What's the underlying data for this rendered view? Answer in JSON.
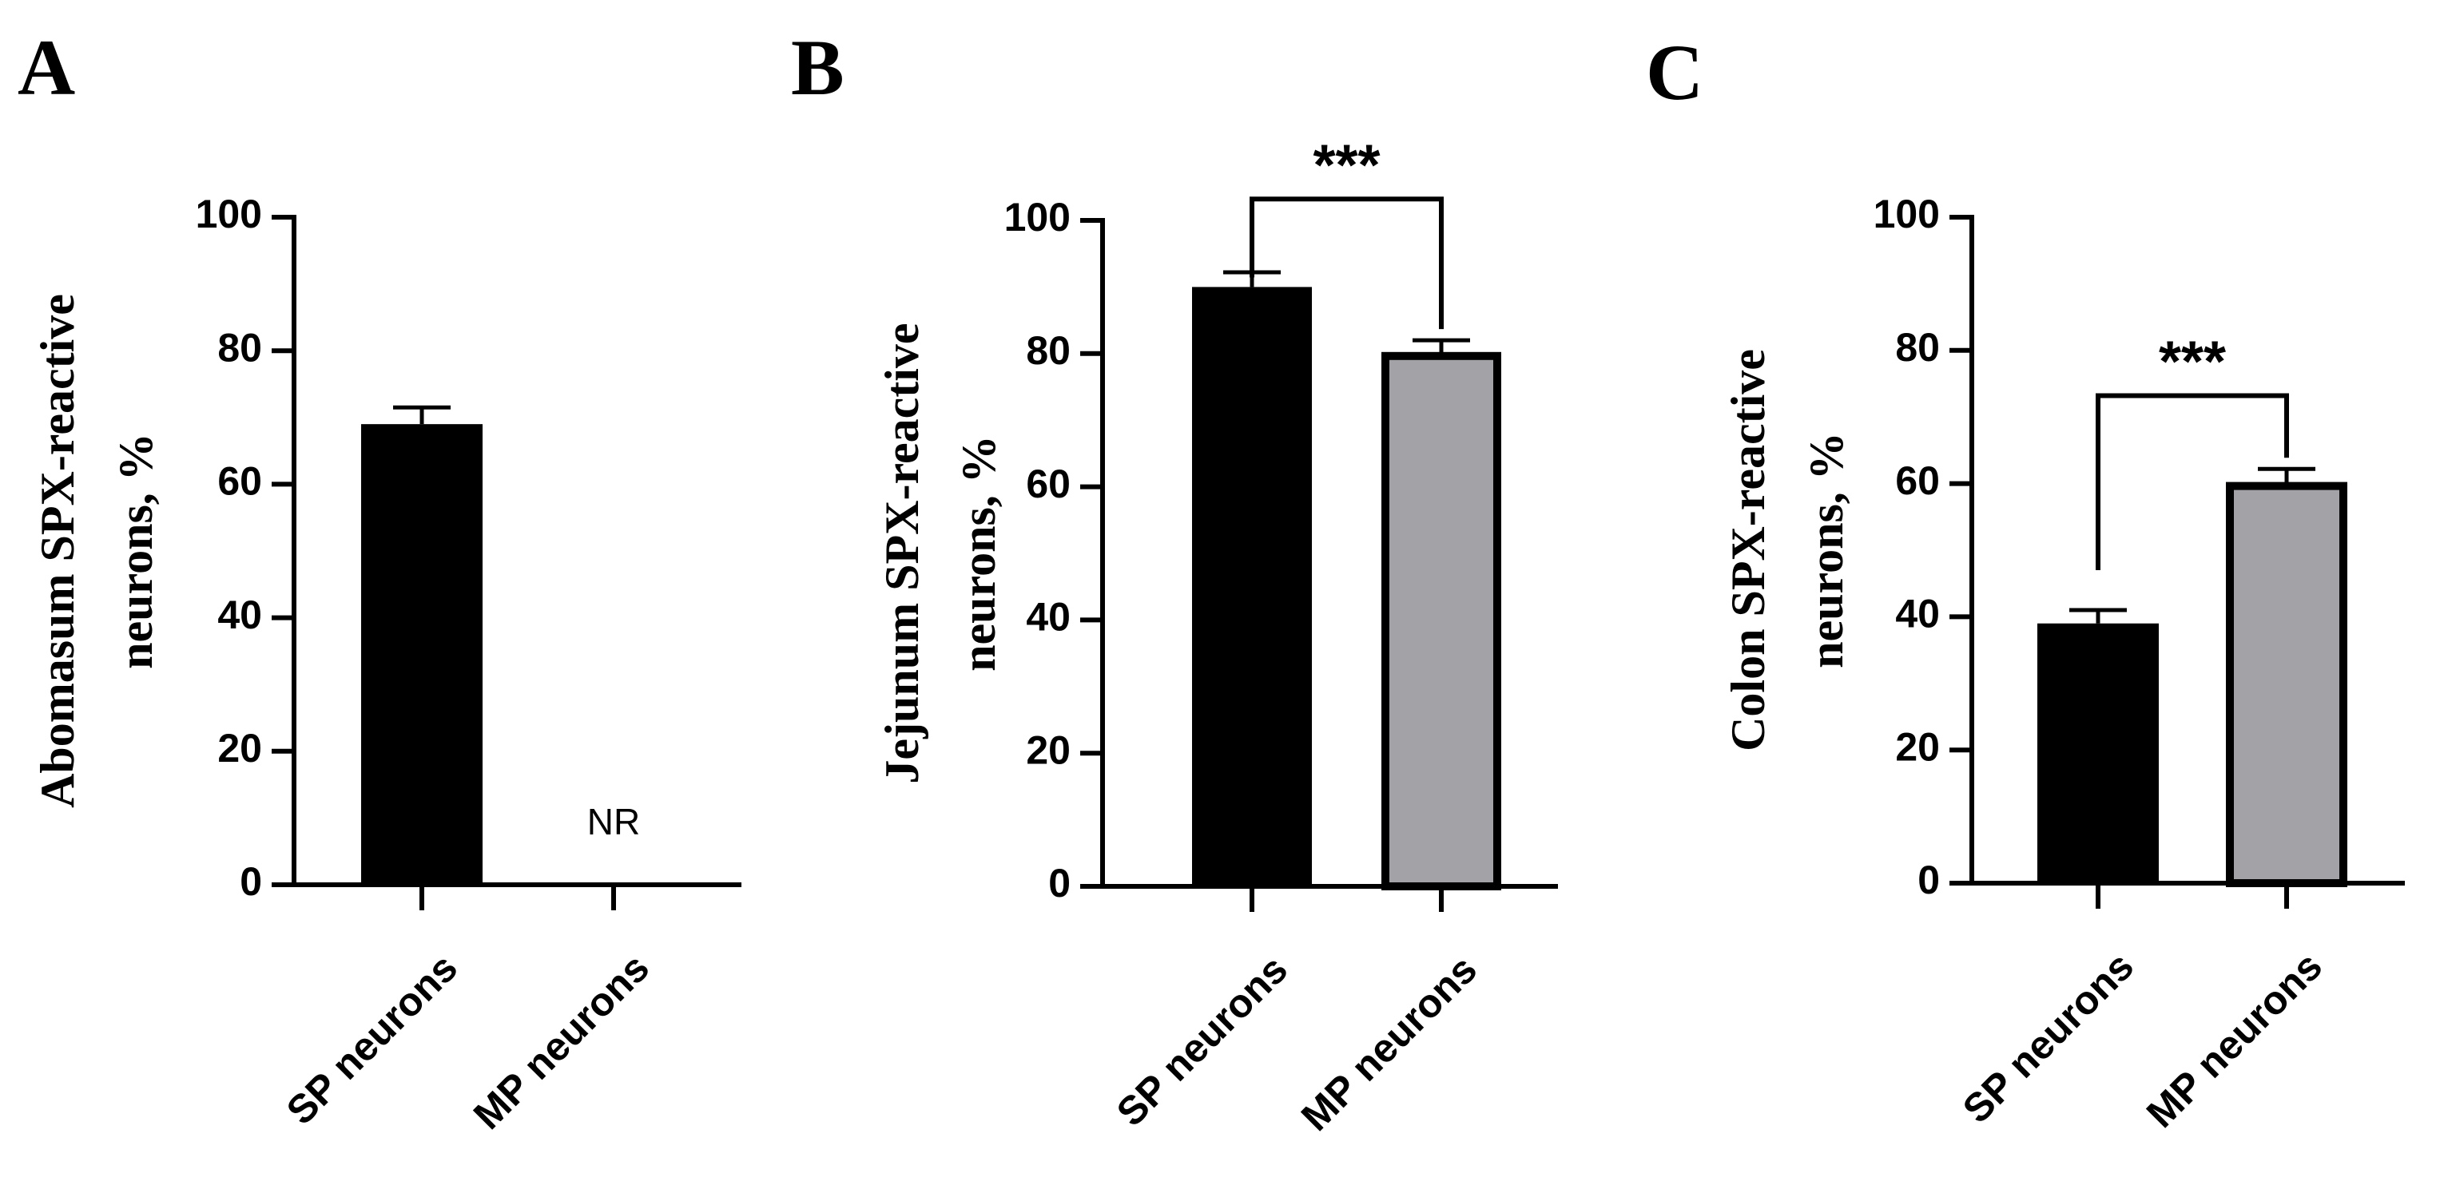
{
  "chart_data": [
    {
      "panel": "A",
      "type": "bar",
      "categories": [
        "SP neurons",
        "MP neurons"
      ],
      "values": [
        69,
        null
      ],
      "errors": [
        2.5,
        null
      ],
      "bar_colors": [
        "#000000",
        "#a3a2a6"
      ],
      "annotations": [
        {
          "category": "MP neurons",
          "text": "NR"
        }
      ],
      "ylabel": "Abomasum SPX-reactive neurons, %",
      "ylabel_lines": [
        "Abomasum SPX-reactive",
        "neurons, %"
      ],
      "ylim": [
        0,
        100
      ],
      "yticks": [
        0,
        20,
        40,
        60,
        80,
        100
      ],
      "significance": null
    },
    {
      "panel": "B",
      "type": "bar",
      "categories": [
        "SP neurons",
        "MP neurons"
      ],
      "values": [
        90,
        80
      ],
      "errors": [
        2.2,
        2.0
      ],
      "bar_colors": [
        "#000000",
        "#a3a2a6"
      ],
      "annotations": [],
      "ylabel": "Jejunum SPX-reactive neurons, %",
      "ylabel_lines": [
        "Jejunum SPX-reactive",
        "neurons, %"
      ],
      "ylim": [
        0,
        100
      ],
      "yticks": [
        0,
        20,
        40,
        60,
        80,
        100
      ],
      "significance": {
        "label": "***",
        "from": 0,
        "to": 1
      }
    },
    {
      "panel": "C",
      "type": "bar",
      "categories": [
        "SP neurons",
        "MP neurons"
      ],
      "values": [
        39,
        60
      ],
      "errors": [
        2.0,
        2.2
      ],
      "bar_colors": [
        "#000000",
        "#a3a2a6"
      ],
      "annotations": [],
      "ylabel": "Colon SPX-reactive neurons, %",
      "ylabel_lines": [
        "Colon SPX-reactive",
        "neurons, %"
      ],
      "ylim": [
        0,
        100
      ],
      "yticks": [
        0,
        20,
        40,
        60,
        80,
        100
      ],
      "significance": {
        "label": "***",
        "from": 0,
        "to": 1
      }
    }
  ]
}
